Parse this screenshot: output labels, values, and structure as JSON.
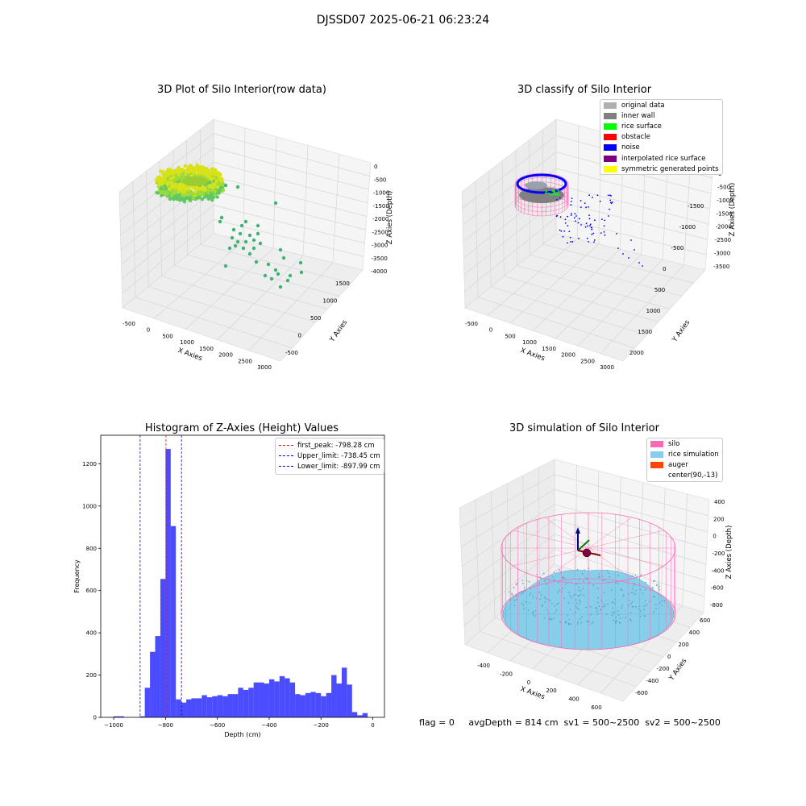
{
  "suptitle": "DJSSD07 2025-06-21 06:23:24",
  "footer": "flag = 0     avgDepth = 814 cm  sv1 = 500~2500  sv2 = 500~2500",
  "panels": {
    "raw": {
      "title": "3D Plot of Silo Interior(row data)",
      "xlabel": "X Axies",
      "ylabel": "Y Axies",
      "zlabel": "Z Axies (Depth)",
      "xticks": [
        "-500",
        "0",
        "500",
        "1000",
        "1500",
        "2000",
        "2500",
        "3000"
      ],
      "yticks": [
        "-500",
        "0",
        "500",
        "1000",
        "1500"
      ],
      "zticks": [
        "0",
        "-500",
        "-1000",
        "-1500",
        "-2000",
        "-2500",
        "-3000",
        "-3500",
        "-4000"
      ]
    },
    "classify": {
      "title": "3D classify of Silo Interior",
      "xlabel": "X Axies",
      "ylabel": "Y Axies",
      "zlabel": "Z Axies (Depth)",
      "xticks": [
        "-500",
        "0",
        "500",
        "1000",
        "1500",
        "2000",
        "2500",
        "3000"
      ],
      "yticks": [
        "-1500",
        "-1000",
        "-500",
        "0",
        "500",
        "1000",
        "1500",
        "2000"
      ],
      "zticks": [
        "0",
        "-500",
        "-1000",
        "-1500",
        "-2000",
        "-2500",
        "-3000",
        "-3500"
      ],
      "legend": [
        {
          "label": "original data",
          "color": "#b0b0b0"
        },
        {
          "label": "inner wall",
          "color": "#808080"
        },
        {
          "label": "rice surface",
          "color": "#00ff00"
        },
        {
          "label": "obstacle",
          "color": "#ff0000"
        },
        {
          "label": "noise",
          "color": "#0000ff"
        },
        {
          "label": "interpolated rice surface",
          "color": "#800080"
        },
        {
          "label": "symmetric generated points",
          "color": "#ffff00"
        }
      ]
    },
    "sim": {
      "title": "3D simulation of Silo Interior",
      "xlabel": "X Axies",
      "ylabel": "Y Axies",
      "zlabel": "Z Axies (Depth)",
      "xticks": [
        "-400",
        "-200",
        "0",
        "200",
        "400",
        "600"
      ],
      "yticks": [
        "-600",
        "-400",
        "-200",
        "0",
        "200",
        "400",
        "600"
      ],
      "zticks": [
        "400",
        "200",
        "0",
        "-200",
        "-400",
        "-600",
        "-800"
      ],
      "legend": [
        {
          "label": "silo",
          "color": "#ff69b4"
        },
        {
          "label": "rice simulation",
          "color": "#87ceeb"
        },
        {
          "label": "auger",
          "color": "#ff4500"
        },
        {
          "label": "center(90,-13)",
          "color": "none"
        }
      ]
    }
  },
  "chart_data": [
    {
      "type": "histogram",
      "title": "Histogram of Z-Axies (Height) Values",
      "xlabel": "Depth (cm)",
      "ylabel": "Frequency",
      "xlim": [
        -1050,
        45
      ],
      "ylim": [
        0,
        1335
      ],
      "xticks": [
        -1000,
        -800,
        -600,
        -400,
        -200,
        0
      ],
      "yticks": [
        0,
        200,
        400,
        600,
        800,
        1000,
        1200
      ],
      "bar_color": "#0000ff",
      "bin_edges_start": -1000,
      "bin_width": 20,
      "values": [
        5,
        5,
        0,
        0,
        0,
        5,
        140,
        310,
        385,
        655,
        1270,
        905,
        85,
        70,
        85,
        90,
        90,
        105,
        95,
        100,
        105,
        100,
        110,
        110,
        140,
        130,
        140,
        165,
        165,
        160,
        180,
        170,
        195,
        185,
        165,
        110,
        105,
        115,
        120,
        115,
        100,
        115,
        200,
        160,
        235,
        155,
        25,
        10,
        20
      ],
      "vlines": [
        {
          "label": "first_peak: -798.28 cm",
          "x": -798.28,
          "color": "#ff0000"
        },
        {
          "label": "Upper_limit: -738.45 cm",
          "x": -738.45,
          "color": "#0000ff"
        },
        {
          "label": "Lower_limit: -897.99 cm",
          "x": -897.99,
          "color": "#0000ff"
        }
      ]
    }
  ]
}
